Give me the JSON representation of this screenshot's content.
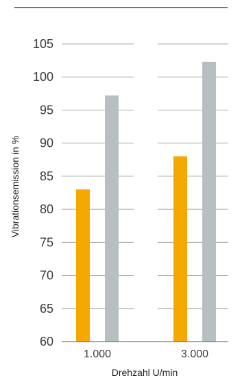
{
  "chart_data": {
    "type": "bar",
    "title": "",
    "xlabel": "Drehzahl U/min",
    "ylabel": "Vibrationsemission in %",
    "categories": [
      "1.000",
      "3.000"
    ],
    "series": [
      {
        "values": [
          83,
          88
        ],
        "color": "#f5a800"
      },
      {
        "values": [
          97.2,
          102.3
        ],
        "color": "#b8bfc3"
      }
    ],
    "ylim": [
      60,
      105
    ],
    "yticks": [
      60,
      65,
      70,
      75,
      80,
      85,
      90,
      95,
      100,
      105
    ],
    "ytick_labels": [
      "60",
      "65",
      "70",
      "75",
      "80",
      "85",
      "90",
      "95",
      "100",
      "105"
    ],
    "grid": true,
    "legend": "none"
  }
}
